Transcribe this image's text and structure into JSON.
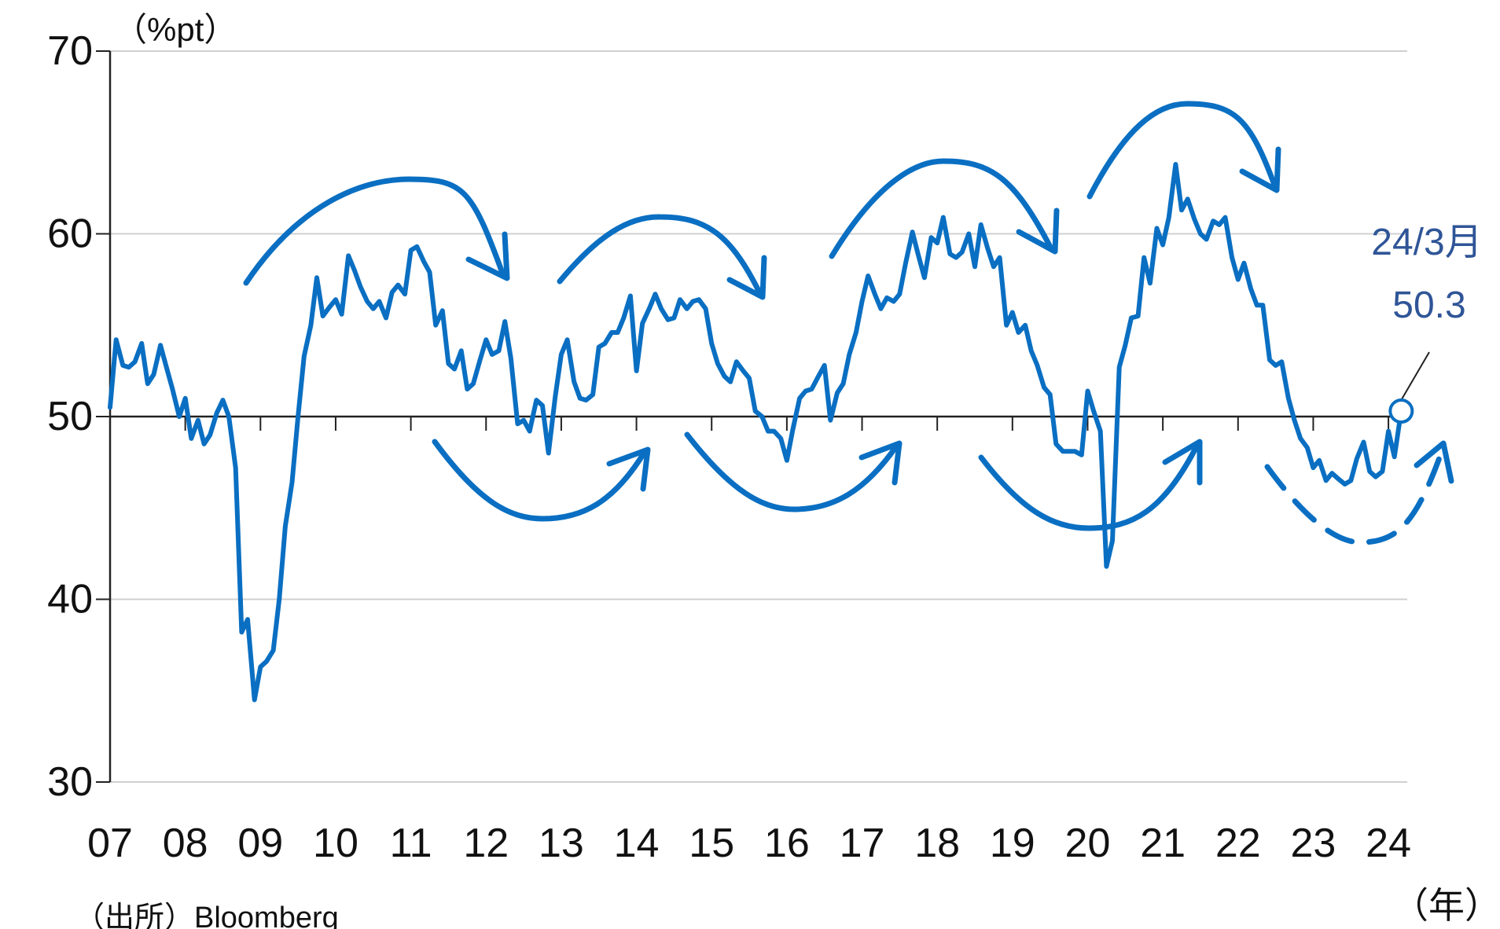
{
  "chart_data": {
    "type": "line",
    "unit_label": "（%pt）",
    "x_unit_label": "（年）",
    "source": "（出所）Bloomberg",
    "ylim": [
      30,
      70
    ],
    "yticks": [
      30,
      40,
      50,
      60,
      70
    ],
    "xlim": [
      2007.0,
      2024.25
    ],
    "xtick_labels": [
      "07",
      "08",
      "09",
      "10",
      "11",
      "12",
      "13",
      "14",
      "15",
      "16",
      "17",
      "18",
      "19",
      "20",
      "21",
      "22",
      "23",
      "24"
    ],
    "reference_line": 50,
    "grid": "horizontal",
    "colors": {
      "line": "#0a6fc2",
      "axis": "#222222",
      "grid": "#d0d0d0",
      "annotation": "#2f5597"
    },
    "latest_point": {
      "label_date": "24/3月",
      "label_value": "50.3",
      "x": 2024.17,
      "y": 50.3
    },
    "series": [
      {
        "x": [
          2007.0,
          2007.08,
          2007.17,
          2007.25,
          2007.33,
          2007.42,
          2007.5,
          2007.58,
          2007.67,
          2007.75,
          2007.83,
          2007.92,
          2008.0,
          2008.08,
          2008.17,
          2008.25,
          2008.33,
          2008.42,
          2008.5,
          2008.58,
          2008.67,
          2008.75,
          2008.83,
          2008.92,
          2009.0,
          2009.08,
          2009.17,
          2009.25,
          2009.33,
          2009.42,
          2009.5,
          2009.58,
          2009.67,
          2009.75,
          2009.83,
          2009.92,
          2010.0,
          2010.08,
          2010.17,
          2010.25,
          2010.33,
          2010.42,
          2010.5,
          2010.58,
          2010.67,
          2010.75,
          2010.83,
          2010.92,
          2011.0,
          2011.08,
          2011.17,
          2011.25,
          2011.33,
          2011.42,
          2011.5,
          2011.58,
          2011.67,
          2011.75,
          2011.83,
          2011.92,
          2012.0,
          2012.08,
          2012.17,
          2012.25,
          2012.33,
          2012.42,
          2012.5,
          2012.58,
          2012.67,
          2012.75,
          2012.83,
          2012.92,
          2013.0,
          2013.08,
          2013.17,
          2013.25,
          2013.33,
          2013.42,
          2013.5,
          2013.58,
          2013.67,
          2013.75,
          2013.83,
          2013.92,
          2014.0,
          2014.08,
          2014.17,
          2014.25,
          2014.33,
          2014.42,
          2014.5,
          2014.58,
          2014.67,
          2014.75,
          2014.83,
          2014.92,
          2015.0,
          2015.08,
          2015.17,
          2015.25,
          2015.33,
          2015.42,
          2015.5,
          2015.58,
          2015.67,
          2015.75,
          2015.83,
          2015.92,
          2016.0,
          2016.08,
          2016.17,
          2016.25,
          2016.33,
          2016.42,
          2016.5,
          2016.58,
          2016.67,
          2016.75,
          2016.83,
          2016.92,
          2017.0,
          2017.08,
          2017.17,
          2017.25,
          2017.33,
          2017.42,
          2017.5,
          2017.58,
          2017.67,
          2017.75,
          2017.83,
          2017.92,
          2018.0,
          2018.08,
          2018.17,
          2018.25,
          2018.33,
          2018.42,
          2018.5,
          2018.58,
          2018.67,
          2018.75,
          2018.83,
          2018.92,
          2019.0,
          2019.08,
          2019.17,
          2019.25,
          2019.33,
          2019.42,
          2019.5,
          2019.58,
          2019.67,
          2019.75,
          2019.83,
          2019.92,
          2020.0,
          2020.08,
          2020.17,
          2020.25,
          2020.33,
          2020.42,
          2020.5,
          2020.58,
          2020.67,
          2020.75,
          2020.83,
          2020.92,
          2021.0,
          2021.08,
          2021.17,
          2021.25,
          2021.33,
          2021.42,
          2021.5,
          2021.58,
          2021.67,
          2021.75,
          2021.83,
          2021.92,
          2022.0,
          2022.08,
          2022.17,
          2022.25,
          2022.33,
          2022.42,
          2022.5,
          2022.58,
          2022.67,
          2022.75,
          2022.83,
          2022.92,
          2023.0,
          2023.08,
          2023.17,
          2023.25,
          2023.33,
          2023.42,
          2023.5,
          2023.58,
          2023.67,
          2023.75,
          2023.83,
          2023.92,
          2024.0,
          2024.08,
          2024.17
        ],
        "values": [
          50.5,
          54.2,
          52.8,
          52.7,
          53.0,
          54.0,
          51.8,
          52.3,
          53.9,
          52.7,
          51.5,
          50.0,
          51.0,
          48.8,
          49.8,
          48.5,
          49.0,
          50.2,
          50.9,
          50.0,
          47.2,
          38.2,
          38.9,
          34.5,
          36.3,
          36.6,
          37.2,
          40.0,
          44.0,
          46.4,
          50.0,
          53.3,
          55.0,
          57.6,
          55.5,
          56.0,
          56.4,
          55.6,
          58.8,
          58.0,
          57.1,
          56.3,
          55.9,
          56.3,
          55.4,
          56.8,
          57.2,
          56.7,
          59.1,
          59.3,
          58.5,
          57.9,
          55.0,
          55.8,
          52.9,
          52.6,
          53.6,
          51.5,
          51.8,
          53.1,
          54.2,
          53.4,
          53.6,
          55.2,
          53.2,
          49.6,
          49.8,
          49.2,
          50.9,
          50.6,
          48.0,
          51.1,
          53.4,
          54.2,
          51.9,
          51.0,
          50.9,
          51.2,
          53.8,
          54.0,
          54.6,
          54.6,
          55.4,
          56.6,
          52.5,
          55.1,
          55.9,
          56.7,
          55.9,
          55.3,
          55.4,
          56.4,
          55.9,
          56.3,
          56.4,
          55.9,
          54.0,
          52.9,
          52.2,
          51.9,
          53.0,
          52.5,
          52.1,
          50.3,
          50.0,
          49.2,
          49.2,
          48.8,
          47.6,
          49.3,
          51.0,
          51.4,
          51.5,
          52.2,
          52.8,
          49.8,
          51.3,
          51.8,
          53.4,
          54.6,
          56.3,
          57.7,
          56.7,
          55.9,
          56.5,
          56.3,
          56.7,
          58.4,
          60.1,
          58.8,
          57.6,
          59.8,
          59.5,
          60.9,
          58.9,
          58.7,
          59.0,
          60.0,
          58.2,
          60.5,
          59.2,
          58.2,
          58.7,
          55.0,
          55.7,
          54.6,
          55.0,
          53.6,
          52.8,
          51.6,
          51.2,
          48.5,
          48.1,
          48.1,
          48.1,
          47.9,
          51.4,
          50.3,
          49.2,
          41.8,
          43.2,
          52.7,
          53.9,
          55.4,
          55.5,
          58.7,
          57.3,
          60.3,
          59.4,
          60.9,
          63.8,
          61.3,
          61.9,
          60.8,
          60.0,
          59.7,
          60.7,
          60.5,
          60.9,
          58.7,
          57.5,
          58.4,
          57.0,
          56.1,
          56.1,
          53.1,
          52.8,
          53.0,
          51.0,
          49.8,
          48.8,
          48.3,
          47.2,
          47.6,
          46.5,
          46.9,
          46.6,
          46.3,
          46.5,
          47.7,
          48.6,
          47.0,
          46.7,
          47.0,
          49.2,
          47.8,
          50.3
        ]
      }
    ]
  }
}
